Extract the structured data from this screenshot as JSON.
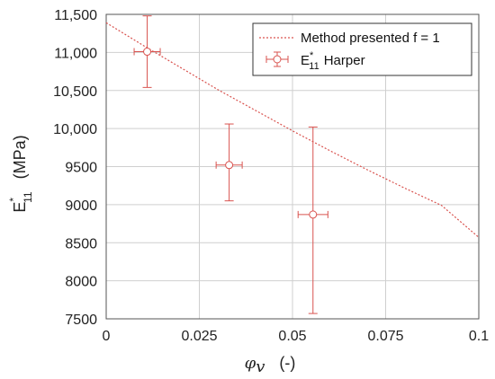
{
  "chart_data": {
    "type": "scatter",
    "xlabel": {
      "symbol": "φ",
      "subscript": "v",
      "unit": "(-)"
    },
    "ylabel": {
      "base": "E",
      "superscript": "*",
      "subscript": "11",
      "unit": "(MPa)"
    },
    "xlim": [
      0,
      0.1
    ],
    "ylim": [
      7500,
      11500
    ],
    "xticks": [
      0,
      0.025,
      0.05,
      0.075,
      0.1
    ],
    "xtick_labels": [
      "0",
      "0.025",
      "0.05",
      "0.075",
      "0.1"
    ],
    "yticks": [
      7500,
      8000,
      8500,
      9000,
      9500,
      10000,
      10500,
      11000,
      11500
    ],
    "ytick_labels": [
      "7500",
      "8000",
      "8500",
      "9000",
      "9500",
      "10,000",
      "10,500",
      "11,000",
      "11,500"
    ],
    "grid": true,
    "legend_position": "top-right",
    "series": [
      {
        "name": "Method presented f = 1",
        "kind": "line",
        "style": "dotted",
        "color": "#d9534f",
        "x": [
          0,
          0.01,
          0.02,
          0.03,
          0.04,
          0.05,
          0.06,
          0.07,
          0.08,
          0.09,
          0.1
        ],
        "y": [
          11390,
          11090,
          10800,
          10510,
          10240,
          9970,
          9710,
          9460,
          9220,
          8990,
          8570
        ]
      },
      {
        "name": "Harper",
        "name_prefix": {
          "base": "E",
          "superscript": "*",
          "subscript": "11"
        },
        "kind": "scatter_errorbar",
        "marker": "open-circle",
        "color": "#d9534f",
        "points": [
          {
            "x": 0.011,
            "y": 11010,
            "y_low": 10540,
            "y_high": 11480,
            "x_low": 0.0075,
            "x_high": 0.0145
          },
          {
            "x": 0.033,
            "y": 9520,
            "y_low": 9050,
            "y_high": 10060,
            "x_low": 0.0295,
            "x_high": 0.0365
          },
          {
            "x": 0.0555,
            "y": 8870,
            "y_low": 7570,
            "y_high": 10020,
            "x_low": 0.0515,
            "x_high": 0.0595
          }
        ]
      }
    ]
  }
}
